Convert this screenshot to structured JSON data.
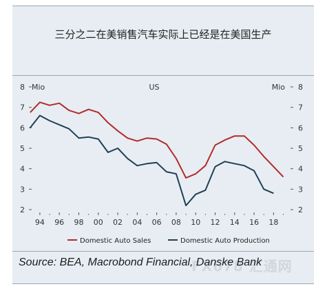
{
  "title": "三分之二在美销售汽车实际上已经是在美国生产",
  "source": "Source: BEA, Macrobond Financial, Danske Bank",
  "watermark": "FX678 汇通网",
  "chart_data": {
    "type": "line",
    "region_label": "US",
    "y_unit_left": "Mio",
    "y_unit_right": "Mio",
    "ylim": [
      2,
      8
    ],
    "yticks": [
      2,
      3,
      4,
      5,
      6,
      7,
      8
    ],
    "xlim": [
      1993.3,
      2019.6
    ],
    "xticks": [
      1994,
      1996,
      1998,
      2000,
      2002,
      2004,
      2006,
      2008,
      2010,
      2012,
      2014,
      2016,
      2018
    ],
    "xtick_labels": [
      "94",
      "96",
      "98",
      "00",
      "02",
      "04",
      "06",
      "08",
      "10",
      "12",
      "14",
      "16",
      "18"
    ],
    "grid": false,
    "legend_position": "bottom",
    "x": [
      1993,
      1994,
      1995,
      1996,
      1997,
      1998,
      1999,
      2000,
      2001,
      2002,
      2003,
      2004,
      2005,
      2006,
      2007,
      2008,
      2009,
      2010,
      2011,
      2012,
      2013,
      2014,
      2015,
      2016,
      2017,
      2018,
      2019
    ],
    "series": [
      {
        "name": "Domestic Auto Sales",
        "color": "#b22a2a",
        "values": [
          6.75,
          7.25,
          7.1,
          7.2,
          6.85,
          6.7,
          6.9,
          6.75,
          6.25,
          5.85,
          5.5,
          5.35,
          5.5,
          5.45,
          5.2,
          4.5,
          3.55,
          3.75,
          4.15,
          5.15,
          5.4,
          5.6,
          5.6,
          5.15,
          4.6,
          4.1,
          3.6
        ]
      },
      {
        "name": "Domestic Auto Production",
        "color": "#1f3f55",
        "values": [
          6.0,
          6.6,
          6.35,
          6.15,
          5.95,
          5.5,
          5.55,
          5.45,
          4.8,
          5.0,
          4.5,
          4.15,
          4.25,
          4.3,
          3.85,
          3.75,
          2.2,
          2.75,
          2.95,
          4.1,
          4.35,
          4.25,
          4.15,
          3.9,
          3.0,
          2.8,
          null
        ]
      }
    ]
  }
}
